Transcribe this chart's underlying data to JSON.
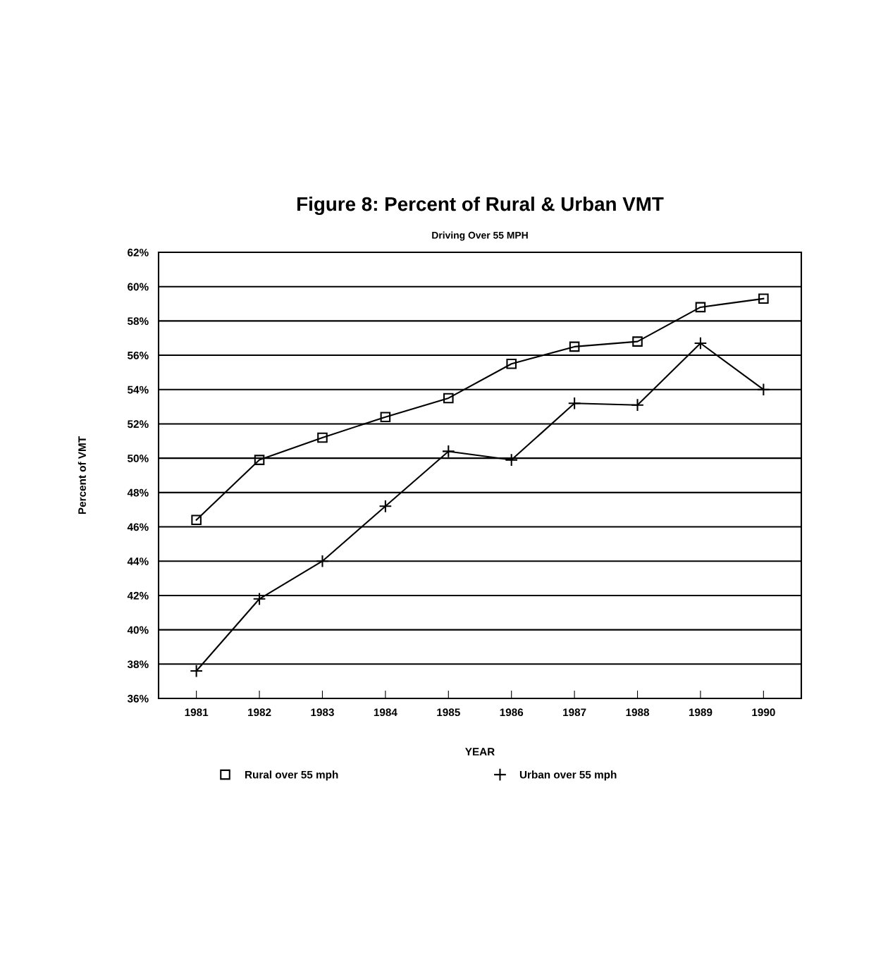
{
  "chart_data": {
    "type": "line",
    "title": "Figure 8: Percent of Rural & Urban VMT",
    "subtitle": "Driving Over 55 MPH",
    "xlabel": "YEAR",
    "ylabel": "Percent of VMT",
    "categories": [
      "1981",
      "1982",
      "1983",
      "1984",
      "1985",
      "1986",
      "1987",
      "1988",
      "1989",
      "1990"
    ],
    "series": [
      {
        "name": "Rural over 55 mph",
        "color": "#000000",
        "marker": "square",
        "values": [
          46.4,
          49.9,
          51.2,
          52.4,
          53.5,
          55.5,
          56.5,
          56.8,
          58.8,
          59.3
        ]
      },
      {
        "name": "Urban over 55 mph",
        "color": "#000000",
        "marker": "cross",
        "values": [
          37.6,
          41.8,
          44.0,
          47.2,
          50.4,
          49.9,
          53.2,
          53.1,
          56.7,
          54.0
        ]
      }
    ],
    "ylim": [
      36,
      62
    ],
    "yticks": [
      {
        "value": 36,
        "label": "36%"
      },
      {
        "value": 38,
        "label": "38%"
      },
      {
        "value": 40,
        "label": "40%"
      },
      {
        "value": 42,
        "label": "42%"
      },
      {
        "value": 44,
        "label": "44%"
      },
      {
        "value": 46,
        "label": "46%"
      },
      {
        "value": 48,
        "label": "48%"
      },
      {
        "value": 50,
        "label": "50%"
      },
      {
        "value": 52,
        "label": "52%"
      },
      {
        "value": 54,
        "label": "54%"
      },
      {
        "value": 56,
        "label": "56%"
      },
      {
        "value": 58,
        "label": "58%"
      },
      {
        "value": 60,
        "label": "60%"
      },
      {
        "value": 62,
        "label": "62%"
      }
    ],
    "grid": "y",
    "legend": "bottom",
    "line_style": "solid"
  }
}
